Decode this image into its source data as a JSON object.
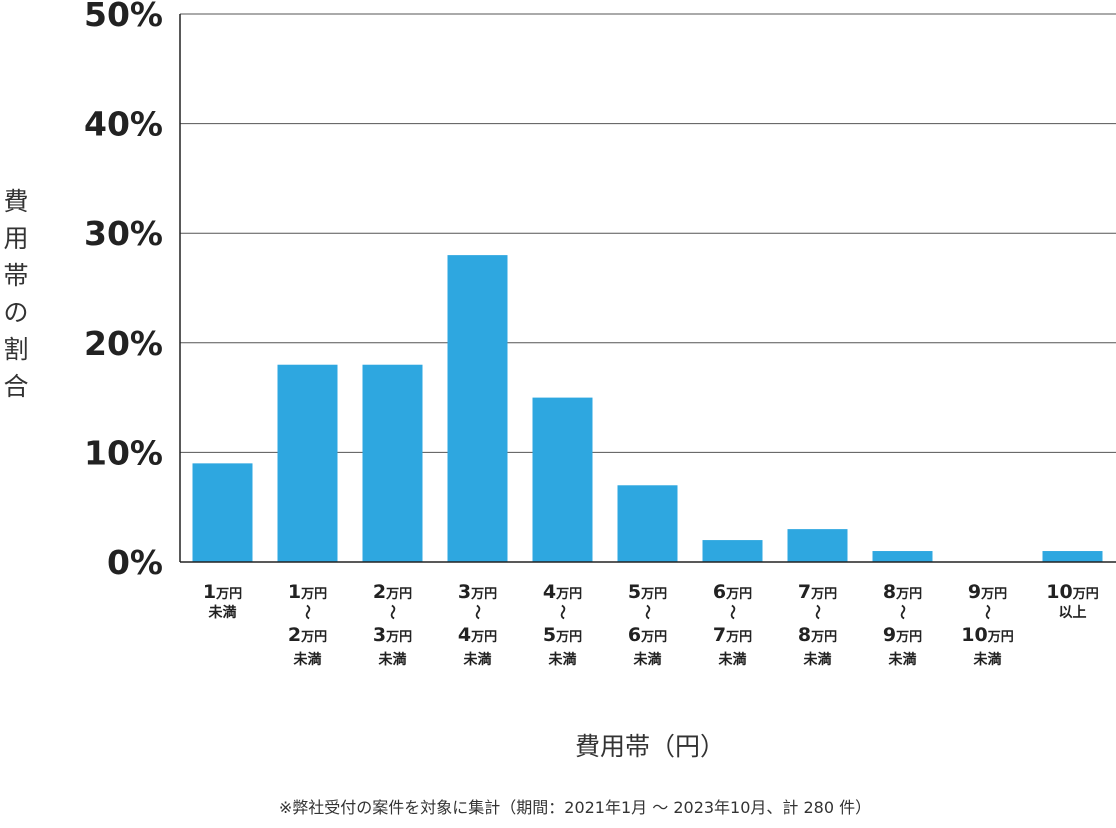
{
  "chart_data": {
    "type": "bar",
    "title": "",
    "ylabel": "費用帯の割合",
    "xlabel": "費用帯（円）",
    "ylim": [
      0,
      50
    ],
    "yticks": [
      "0%",
      "10%",
      "20%",
      "30%",
      "40%",
      "50%"
    ],
    "grid": true,
    "bar_color": "#2ea7e0",
    "categories": [
      [
        "1万円",
        "未満"
      ],
      [
        "1万円",
        "〜",
        "2万円",
        "未満"
      ],
      [
        "2万円",
        "〜",
        "3万円",
        "未満"
      ],
      [
        "3万円",
        "〜",
        "4万円",
        "未満"
      ],
      [
        "4万円",
        "〜",
        "5万円",
        "未満"
      ],
      [
        "5万円",
        "〜",
        "6万円",
        "未満"
      ],
      [
        "6万円",
        "〜",
        "7万円",
        "未満"
      ],
      [
        "7万円",
        "〜",
        "8万円",
        "未満"
      ],
      [
        "8万円",
        "〜",
        "9万円",
        "未満"
      ],
      [
        "9万円",
        "〜",
        "10万円",
        "未満"
      ],
      [
        "10万円",
        "以上"
      ]
    ],
    "values": [
      9,
      18,
      18,
      28,
      15,
      7,
      2,
      3,
      1,
      0,
      1
    ],
    "footnote": "※弊社受付の案件を対象に集計（期間：2021年1月 ～ 2023年10月、計 280 件）"
  }
}
